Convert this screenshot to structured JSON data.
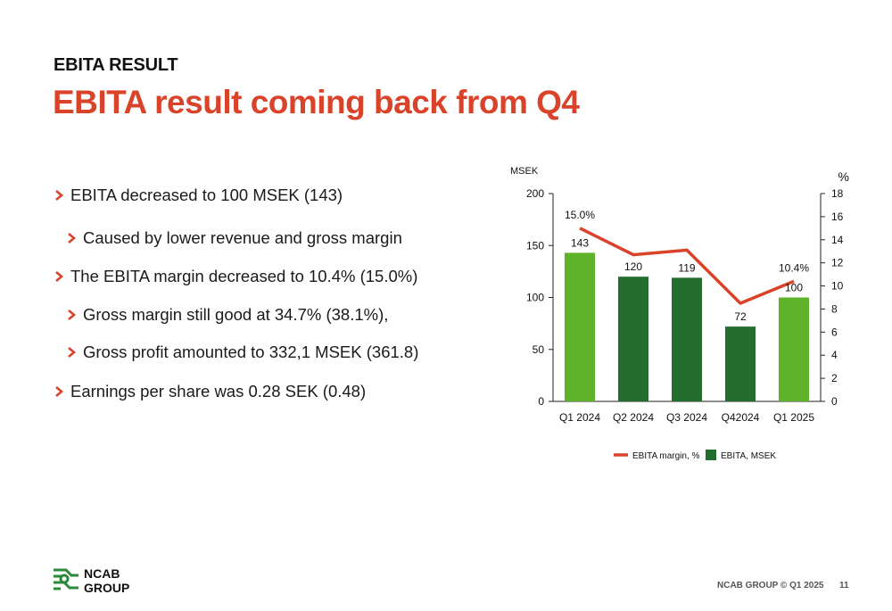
{
  "header": {
    "section": "EBITA RESULT",
    "headline": "EBITA result coming back from Q4"
  },
  "bullets": [
    {
      "level": 1,
      "text": "EBITA decreased to 100 MSEK (143)"
    },
    {
      "level": 2,
      "text": "Caused by lower revenue and gross margin"
    },
    {
      "level": 1,
      "text": "The EBITA margin decreased to 10.4% (15.0%)"
    },
    {
      "level": 2,
      "text": "Gross margin still good at 34.7% (38.1%),"
    },
    {
      "level": 2,
      "text": "Gross profit amounted to 332,1 MSEK (361.8)"
    },
    {
      "level": 1,
      "text": "Earnings per share was 0.28 SEK (0.48)"
    }
  ],
  "colors": {
    "accent": "#d9432a",
    "bar_dark": "#236e2e",
    "bar_light": "#5fb32b",
    "line": "#d9432a"
  },
  "icons": {
    "bullet": "chevron-right-icon"
  },
  "chart_data": {
    "type": "bar",
    "categories": [
      "Q1 2024",
      "Q2 2024",
      "Q3 2024",
      "Q42024",
      "Q1 2025"
    ],
    "series": [
      {
        "name": "EBITA, MSEK",
        "type": "bar",
        "axis": "left",
        "values": [
          143,
          120,
          119,
          72,
          100
        ],
        "value_labels": [
          "143",
          "120",
          "119",
          "72",
          "100"
        ],
        "highlight": [
          true,
          false,
          false,
          false,
          true
        ]
      },
      {
        "name": "EBITA margin, %",
        "type": "line",
        "axis": "right",
        "values": [
          15.0,
          12.7,
          13.1,
          8.5,
          10.4
        ],
        "value_labels": [
          "15.0%",
          "",
          "",
          "",
          "10.4%"
        ]
      }
    ],
    "left_axis": {
      "label": "MSEK",
      "range": [
        0,
        200
      ],
      "ticks": [
        0,
        50,
        100,
        150,
        200
      ]
    },
    "right_axis": {
      "label": "%",
      "range": [
        0,
        18
      ],
      "ticks": [
        0,
        2,
        4,
        6,
        8,
        10,
        12,
        14,
        16,
        18
      ]
    },
    "grid": false,
    "legend_position": "bottom"
  },
  "footer": {
    "source": "NCAB GROUP © Q1 2025",
    "page": "11",
    "logo_lines": [
      "NCAB",
      "GROUP"
    ]
  }
}
